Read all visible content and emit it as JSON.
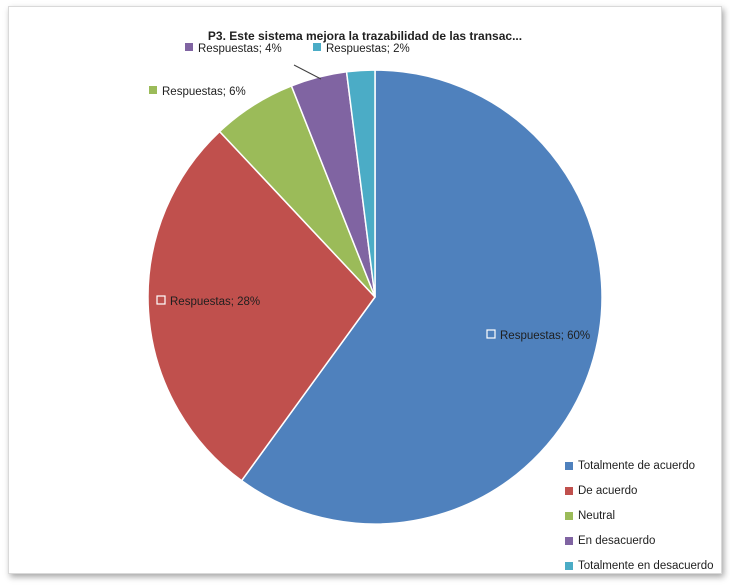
{
  "chart_data": {
    "type": "pie",
    "title": "P3. Este sistema mejora la trazabilidad de las transac...",
    "categories": [
      "Totalmente de acuerdo",
      "De acuerdo",
      "Neutral",
      "En desacuerdo",
      "Totalmente en desacuerdo"
    ],
    "values": [
      60,
      28,
      6,
      4,
      2
    ],
    "data_labels": [
      "Respuestas; 60%",
      "Respuestas; 28%",
      "Respuestas; 6%",
      "Respuestas; 4%",
      "Respuestas; 2%"
    ],
    "colors": [
      "#4f81bd",
      "#c0504d",
      "#9bbb59",
      "#8064a2",
      "#4bacc6"
    ],
    "legend_position": "bottom-right"
  }
}
